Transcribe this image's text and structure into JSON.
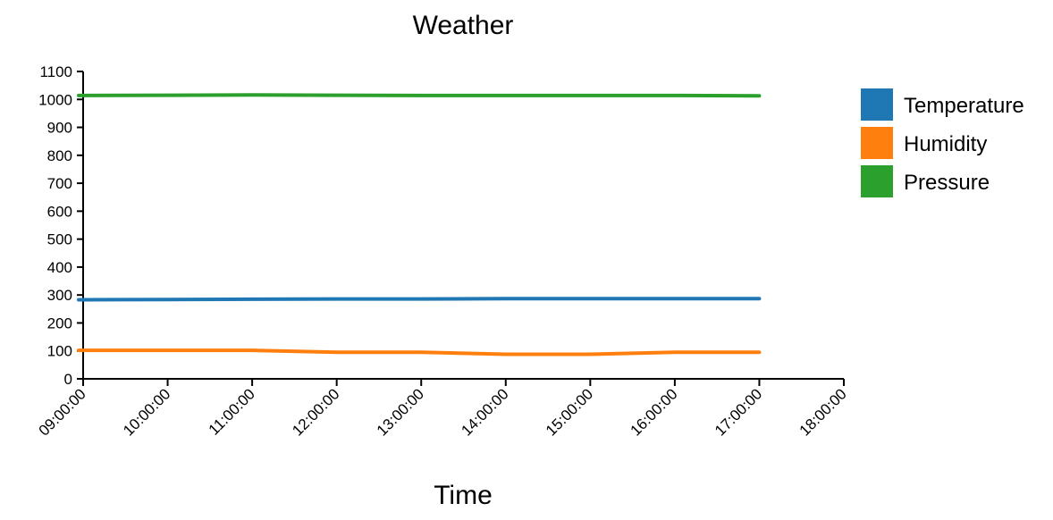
{
  "chart_data": {
    "type": "line",
    "title": "Weather",
    "xlabel": "Time",
    "ylabel": "",
    "x_ticks": [
      "09:00:00",
      "10:00:00",
      "11:00:00",
      "12:00:00",
      "13:00:00",
      "14:00:00",
      "15:00:00",
      "16:00:00",
      "17:00:00",
      "18:00:00"
    ],
    "xlim": [
      "09:00:00",
      "18:00:00"
    ],
    "ylim": [
      0,
      1100
    ],
    "y_ticks": [
      0,
      100,
      200,
      300,
      400,
      500,
      600,
      700,
      800,
      900,
      1000,
      1100
    ],
    "x": [
      "09:00:00",
      "10:00:00",
      "11:00:00",
      "12:00:00",
      "13:00:00",
      "14:00:00",
      "15:00:00",
      "16:00:00",
      "17:00:00"
    ],
    "series": [
      {
        "name": "Temperature",
        "color": "#1f77b4",
        "values": [
          283,
          284,
          285,
          286,
          286,
          287,
          287,
          287,
          287
        ]
      },
      {
        "name": "Humidity",
        "color": "#ff7f0e",
        "values": [
          102,
          102,
          102,
          95,
          95,
          88,
          88,
          95,
          95
        ]
      },
      {
        "name": "Pressure",
        "color": "#2ca02c",
        "values": [
          1014,
          1015,
          1016,
          1015,
          1014,
          1014,
          1014,
          1014,
          1013
        ]
      }
    ],
    "grid": false,
    "legend_position": "right"
  }
}
